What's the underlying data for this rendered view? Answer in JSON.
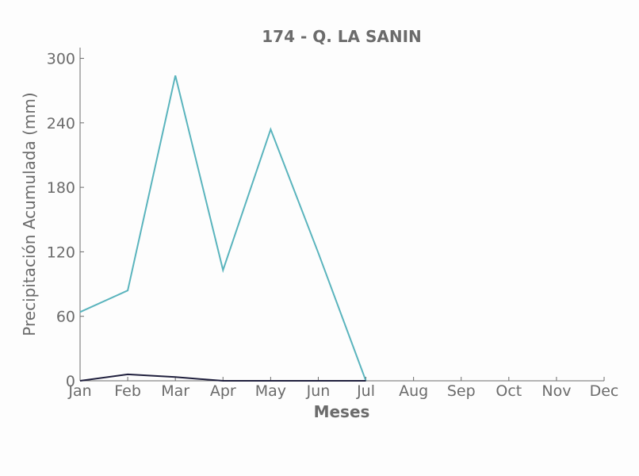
{
  "chart_data": {
    "type": "line",
    "title": "174 - Q. LA SANIN",
    "xlabel": "Meses",
    "ylabel": "Precipitación Acumulada (mm)",
    "categories": [
      "Jan",
      "Feb",
      "Mar",
      "Apr",
      "May",
      "Jun",
      "Jul",
      "Aug",
      "Sep",
      "Oct",
      "Nov",
      "Dec"
    ],
    "yticks": [
      "0",
      "60",
      "120",
      "180",
      "240",
      "300"
    ],
    "ylim": [
      0,
      310
    ],
    "grid": false,
    "series": [
      {
        "color": "#5ab4bd",
        "values": [
          64,
          84,
          284,
          103,
          234,
          119,
          0,
          null,
          null,
          null,
          null,
          null
        ]
      },
      {
        "color": "#1f1f3d",
        "values": [
          0,
          6,
          3.5,
          0,
          0,
          0,
          0,
          null,
          null,
          null,
          null,
          null
        ]
      }
    ]
  }
}
